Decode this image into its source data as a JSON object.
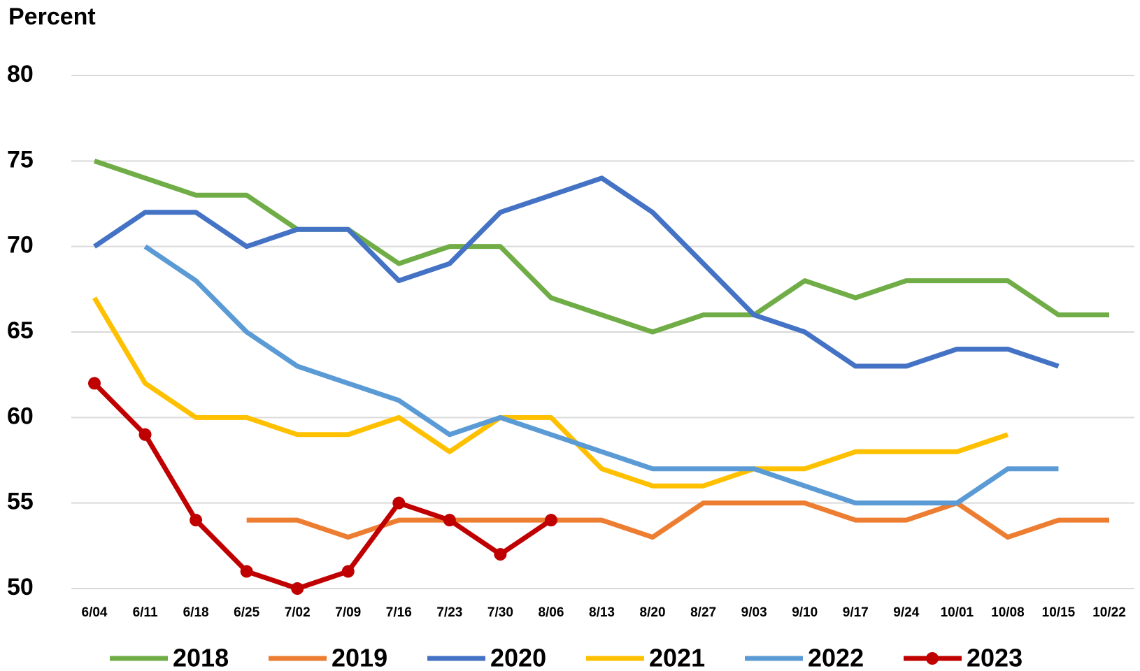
{
  "chart_data": {
    "type": "line",
    "y_label": "Percent",
    "categories": [
      "6/04",
      "6/11",
      "6/18",
      "6/25",
      "7/02",
      "7/09",
      "7/16",
      "7/23",
      "7/30",
      "8/06",
      "8/13",
      "8/20",
      "8/27",
      "9/03",
      "9/10",
      "9/17",
      "9/24",
      "10/01",
      "10/08",
      "10/15",
      "10/22"
    ],
    "ylim": [
      50,
      80
    ],
    "yticks": [
      50,
      55,
      60,
      65,
      70,
      75,
      80
    ],
    "grid": true,
    "legend": "bottom",
    "series": [
      {
        "name": "2018",
        "color": "#70ad47",
        "values": [
          75,
          74,
          73,
          73,
          71,
          71,
          69,
          70,
          70,
          67,
          66,
          65,
          66,
          66,
          68,
          67,
          68,
          68,
          68,
          66,
          66
        ]
      },
      {
        "name": "2019",
        "color": "#ed7d31",
        "values": [
          null,
          null,
          null,
          54,
          54,
          53,
          54,
          54,
          54,
          54,
          54,
          53,
          55,
          55,
          55,
          54,
          54,
          55,
          53,
          54,
          54
        ]
      },
      {
        "name": "2020",
        "color": "#4472c4",
        "values": [
          70,
          72,
          72,
          70,
          71,
          71,
          68,
          69,
          72,
          73,
          74,
          72,
          69,
          66,
          65,
          63,
          63,
          64,
          64,
          63,
          null
        ]
      },
      {
        "name": "2021",
        "color": "#ffc000",
        "values": [
          67,
          62,
          60,
          60,
          59,
          59,
          60,
          58,
          60,
          60,
          57,
          56,
          56,
          57,
          57,
          58,
          58,
          58,
          59,
          null,
          null
        ]
      },
      {
        "name": "2022",
        "color": "#5b9bd5",
        "values": [
          null,
          70,
          68,
          65,
          63,
          62,
          61,
          59,
          60,
          59,
          58,
          57,
          57,
          57,
          56,
          55,
          55,
          55,
          57,
          57,
          null
        ]
      },
      {
        "name": "2023",
        "color": "#c00000",
        "markers": true,
        "values": [
          62,
          59,
          54,
          51,
          50,
          51,
          55,
          54,
          52,
          54,
          null,
          null,
          null,
          null,
          null,
          null,
          null,
          null,
          null,
          null,
          null
        ]
      }
    ]
  }
}
